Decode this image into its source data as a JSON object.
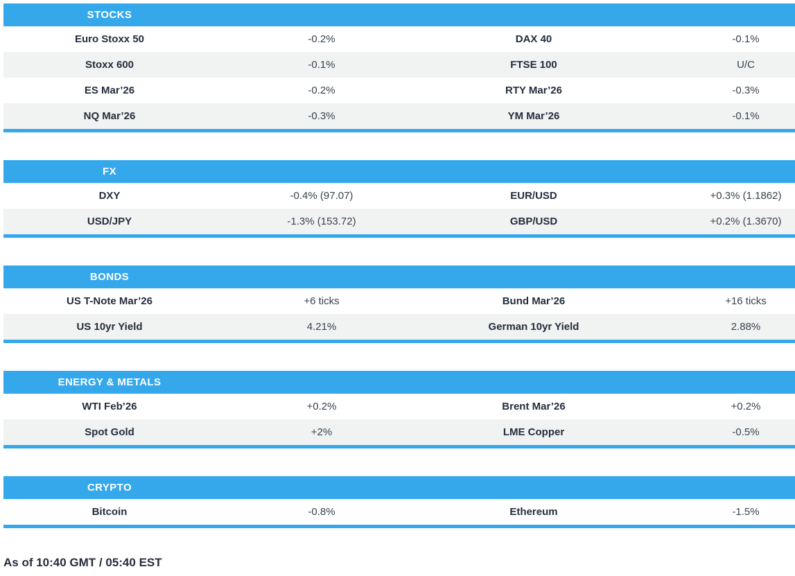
{
  "meta": {
    "kind": "market-summary-table",
    "colors": {
      "accent_blue": "#35a8ec",
      "row_alt_gray": "#f1f2f2",
      "label_text": "#242d3c",
      "value_text": "#39424f",
      "header_text": "#ffffff"
    }
  },
  "sections": [
    {
      "title": "STOCKS",
      "rows": [
        {
          "cells": [
            "Euro Stoxx 50",
            "-0.2%",
            "DAX 40",
            "-0.1%"
          ]
        },
        {
          "cells": [
            "Stoxx 600",
            "-0.1%",
            "FTSE 100",
            "U/C"
          ]
        },
        {
          "cells": [
            "ES Mar’26",
            "-0.2%",
            "RTY Mar’26",
            "-0.3%"
          ]
        },
        {
          "cells": [
            "NQ Mar’26",
            "-0.3%",
            "YM Mar’26",
            "-0.1%"
          ]
        }
      ]
    },
    {
      "title": "FX",
      "rows": [
        {
          "cells": [
            "DXY",
            "-0.4% (97.07)",
            "EUR/USD",
            "+0.3% (1.1862)"
          ]
        },
        {
          "cells": [
            "USD/JPY",
            "-1.3% (153.72)",
            "GBP/USD",
            "+0.2% (1.3670)"
          ]
        }
      ]
    },
    {
      "title": "BONDS",
      "rows": [
        {
          "cells": [
            "US T-Note Mar’26",
            "+6 ticks",
            "Bund Mar’26",
            "+16 ticks"
          ]
        },
        {
          "cells": [
            "US 10yr Yield",
            "4.21%",
            "German 10yr Yield",
            "2.88%"
          ]
        }
      ]
    },
    {
      "title": "ENERGY & METALS",
      "rows": [
        {
          "cells": [
            "WTI Feb’26",
            "+0.2%",
            "Brent Mar’26",
            "+0.2%"
          ]
        },
        {
          "cells": [
            "Spot Gold",
            "+2%",
            "LME Copper",
            "-0.5%"
          ]
        }
      ]
    },
    {
      "title": "CRYPTO",
      "rows": [
        {
          "cells": [
            "Bitcoin",
            "-0.8%",
            "Ethereum",
            "-1.5%"
          ]
        }
      ]
    }
  ],
  "footer": {
    "timestamp": "As of 10:40 GMT / 05:40 EST"
  }
}
